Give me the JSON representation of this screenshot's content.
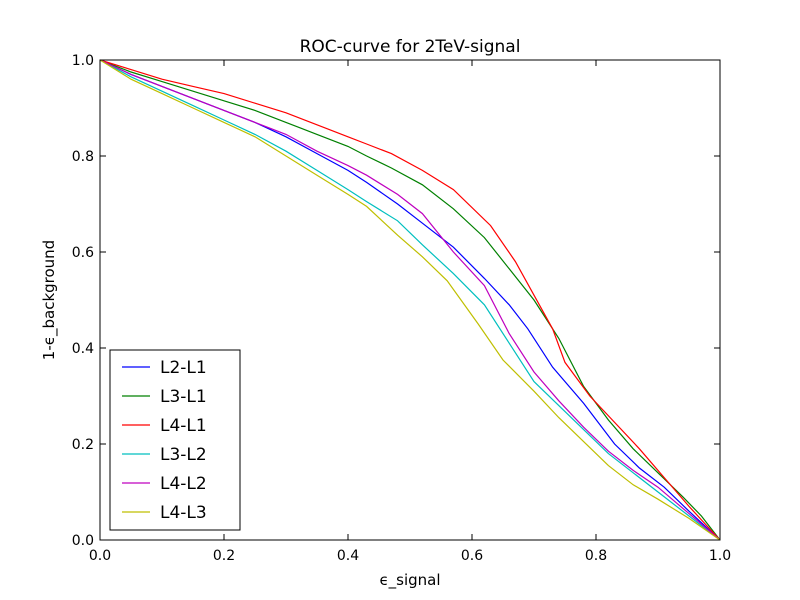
{
  "chart_data": {
    "type": "line",
    "title": "ROC-curve for 2TeV-signal",
    "xlabel": "ϵ_signal",
    "ylabel": "1-ϵ_background",
    "xlim": [
      0.0,
      1.0
    ],
    "ylim": [
      0.0,
      1.0
    ],
    "xticks": [
      "0.0",
      "0.2",
      "0.4",
      "0.6",
      "0.8",
      "1.0"
    ],
    "yticks": [
      "0.0",
      "0.2",
      "0.4",
      "0.6",
      "0.8",
      "1.0"
    ],
    "grid": false,
    "legend_position": "lower-left",
    "series": [
      {
        "name": "L2-L1",
        "color": "#0000ff",
        "x": [
          0.0,
          0.05,
          0.1,
          0.15,
          0.2,
          0.25,
          0.3,
          0.35,
          0.4,
          0.43,
          0.48,
          0.52,
          0.57,
          0.62,
          0.66,
          0.69,
          0.73,
          0.78,
          0.83,
          0.87,
          0.91,
          0.95,
          1.0
        ],
        "y": [
          1.0,
          0.97,
          0.945,
          0.92,
          0.895,
          0.87,
          0.84,
          0.805,
          0.77,
          0.745,
          0.7,
          0.66,
          0.61,
          0.545,
          0.49,
          0.44,
          0.36,
          0.285,
          0.2,
          0.15,
          0.11,
          0.06,
          0.0
        ]
      },
      {
        "name": "L3-L1",
        "color": "#008000",
        "x": [
          0.0,
          0.05,
          0.1,
          0.15,
          0.2,
          0.25,
          0.3,
          0.35,
          0.4,
          0.43,
          0.47,
          0.52,
          0.57,
          0.62,
          0.66,
          0.7,
          0.74,
          0.78,
          0.82,
          0.86,
          0.9,
          0.94,
          0.97,
          1.0
        ],
        "y": [
          1.0,
          0.975,
          0.955,
          0.935,
          0.915,
          0.895,
          0.87,
          0.845,
          0.82,
          0.8,
          0.775,
          0.74,
          0.69,
          0.63,
          0.565,
          0.5,
          0.42,
          0.32,
          0.25,
          0.19,
          0.14,
          0.09,
          0.05,
          0.0
        ]
      },
      {
        "name": "L4-L1",
        "color": "#ff0000",
        "x": [
          0.0,
          0.05,
          0.1,
          0.15,
          0.2,
          0.25,
          0.3,
          0.35,
          0.4,
          0.43,
          0.47,
          0.52,
          0.57,
          0.63,
          0.67,
          0.7,
          0.73,
          0.75,
          0.79,
          0.83,
          0.87,
          0.91,
          0.95,
          1.0
        ],
        "y": [
          1.0,
          0.98,
          0.96,
          0.945,
          0.93,
          0.91,
          0.89,
          0.865,
          0.84,
          0.825,
          0.805,
          0.77,
          0.73,
          0.655,
          0.58,
          0.51,
          0.44,
          0.37,
          0.3,
          0.245,
          0.19,
          0.13,
          0.07,
          0.0
        ]
      },
      {
        "name": "L3-L2",
        "color": "#00bfbf",
        "x": [
          0.0,
          0.05,
          0.1,
          0.15,
          0.2,
          0.25,
          0.3,
          0.35,
          0.4,
          0.43,
          0.48,
          0.52,
          0.57,
          0.62,
          0.66,
          0.7,
          0.74,
          0.78,
          0.82,
          0.86,
          0.9,
          0.95,
          1.0
        ],
        "y": [
          1.0,
          0.965,
          0.935,
          0.905,
          0.875,
          0.845,
          0.81,
          0.77,
          0.73,
          0.705,
          0.665,
          0.615,
          0.555,
          0.49,
          0.41,
          0.33,
          0.28,
          0.23,
          0.18,
          0.14,
          0.1,
          0.05,
          0.0
        ]
      },
      {
        "name": "L4-L2",
        "color": "#bf00bf",
        "x": [
          0.0,
          0.05,
          0.1,
          0.15,
          0.2,
          0.25,
          0.3,
          0.35,
          0.4,
          0.43,
          0.48,
          0.52,
          0.57,
          0.62,
          0.66,
          0.7,
          0.74,
          0.78,
          0.82,
          0.86,
          0.9,
          0.95,
          1.0
        ],
        "y": [
          1.0,
          0.97,
          0.945,
          0.92,
          0.895,
          0.87,
          0.845,
          0.81,
          0.78,
          0.76,
          0.72,
          0.68,
          0.6,
          0.53,
          0.43,
          0.35,
          0.29,
          0.235,
          0.185,
          0.145,
          0.11,
          0.055,
          0.0
        ]
      },
      {
        "name": "L4-L3",
        "color": "#bfbf00",
        "x": [
          0.0,
          0.05,
          0.1,
          0.15,
          0.2,
          0.25,
          0.3,
          0.35,
          0.4,
          0.43,
          0.48,
          0.52,
          0.56,
          0.61,
          0.65,
          0.7,
          0.74,
          0.78,
          0.82,
          0.86,
          0.9,
          0.95,
          1.0
        ],
        "y": [
          1.0,
          0.96,
          0.93,
          0.9,
          0.87,
          0.84,
          0.8,
          0.76,
          0.72,
          0.695,
          0.635,
          0.59,
          0.54,
          0.45,
          0.375,
          0.31,
          0.255,
          0.205,
          0.155,
          0.115,
          0.085,
          0.045,
          0.0
        ]
      }
    ]
  }
}
